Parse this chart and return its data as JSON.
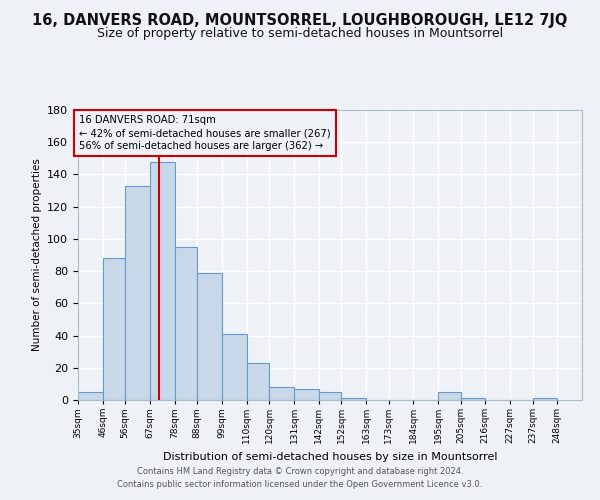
{
  "title": "16, DANVERS ROAD, MOUNTSORREL, LOUGHBOROUGH, LE12 7JQ",
  "subtitle": "Size of property relative to semi-detached houses in Mountsorrel",
  "xlabel": "Distribution of semi-detached houses by size in Mountsorrel",
  "ylabel": "Number of semi-detached properties",
  "bin_labels": [
    "35sqm",
    "46sqm",
    "56sqm",
    "67sqm",
    "78sqm",
    "88sqm",
    "99sqm",
    "110sqm",
    "120sqm",
    "131sqm",
    "142sqm",
    "152sqm",
    "163sqm",
    "173sqm",
    "184sqm",
    "195sqm",
    "205sqm",
    "216sqm",
    "227sqm",
    "237sqm",
    "248sqm"
  ],
  "bin_edges": [
    35,
    46,
    56,
    67,
    78,
    88,
    99,
    110,
    120,
    131,
    142,
    152,
    163,
    173,
    184,
    195,
    205,
    216,
    227,
    237,
    248
  ],
  "bar_heights": [
    5,
    88,
    133,
    148,
    95,
    79,
    41,
    23,
    8,
    7,
    5,
    1,
    0,
    0,
    0,
    5,
    1,
    0,
    0,
    1
  ],
  "bar_color": "#c8d8e8",
  "bar_edge_color": "#6699cc",
  "vline_x": 71,
  "vline_color": "#cc0000",
  "annotation_title": "16 DANVERS ROAD: 71sqm",
  "annotation_line1": "← 42% of semi-detached houses are smaller (267)",
  "annotation_line2": "56% of semi-detached houses are larger (362) →",
  "annotation_box_color": "#cc0000",
  "ylim": [
    0,
    180
  ],
  "yticks": [
    0,
    20,
    40,
    60,
    80,
    100,
    120,
    140,
    160,
    180
  ],
  "footer1": "Contains HM Land Registry data © Crown copyright and database right 2024.",
  "footer2": "Contains public sector information licensed under the Open Government Licence v3.0.",
  "bg_color": "#eef2f7",
  "grid_color": "#ffffff",
  "title_fontsize": 10.5,
  "subtitle_fontsize": 9
}
